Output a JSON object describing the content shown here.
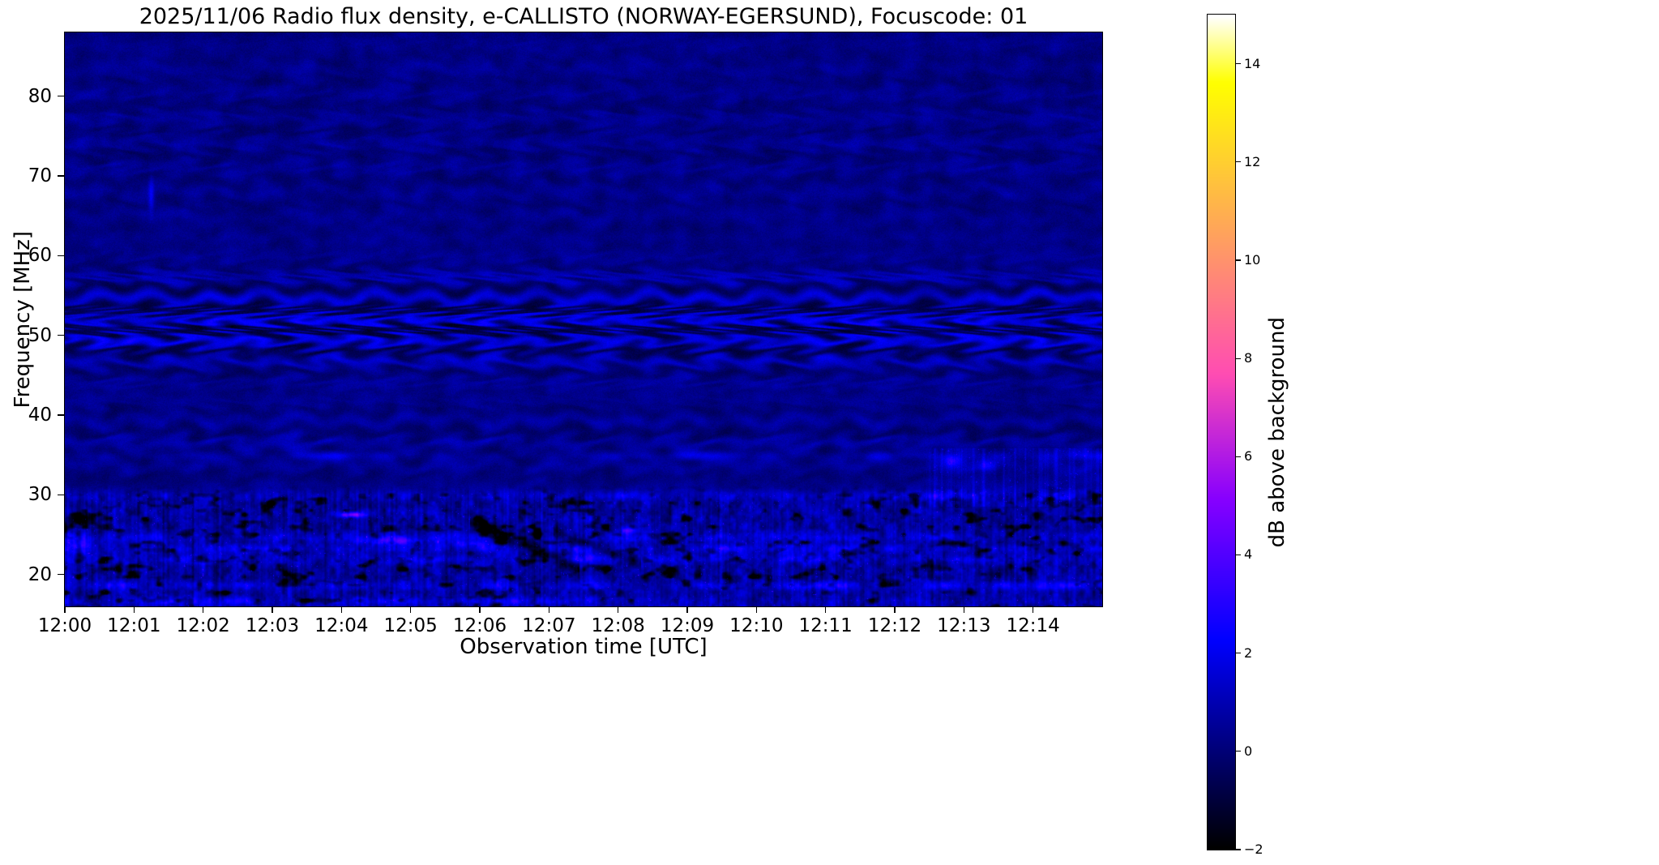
{
  "chart_data": {
    "type": "heatmap",
    "title": "2025/11/06  Radio flux density, e-CALLISTO (NORWAY-EGERSUND), Focuscode: 01",
    "xlabel": "Observation time [UTC]",
    "ylabel": "Frequency [MHz]",
    "colorbar_label": "dB above background",
    "x_tick_labels": [
      "12:00",
      "12:01",
      "12:02",
      "12:03",
      "12:04",
      "12:05",
      "12:06",
      "12:07",
      "12:08",
      "12:09",
      "12:10",
      "12:11",
      "12:12",
      "12:13",
      "12:14"
    ],
    "x_range_minutes": [
      0,
      15
    ],
    "y_tick_values": [
      20,
      30,
      40,
      50,
      60,
      70,
      80
    ],
    "y_range_mhz": [
      16,
      88
    ],
    "colorbar_tick_values": [
      -2,
      0,
      2,
      4,
      6,
      8,
      10,
      12,
      14
    ],
    "color_range_db": [
      -2,
      15
    ],
    "colormap": "gnuplot2",
    "grid": false,
    "legend": "none",
    "render": {
      "seed": 7,
      "background_db": 0.15,
      "ripple_bands": [
        {
          "center_mhz": 51.5,
          "sigma_mhz": 6.5,
          "amp_db": 1.5,
          "period_mhz": 2.7
        },
        {
          "center_mhz": 74.0,
          "sigma_mhz": 13.0,
          "amp_db": 0.32,
          "period_mhz": 3.1
        },
        {
          "center_mhz": 37.0,
          "sigma_mhz": 5.5,
          "amp_db": 0.5,
          "period_mhz": 2.9
        }
      ],
      "wobble": {
        "amp_mhz": 0.55,
        "period_min": 0.8,
        "period2_min": 1.9
      },
      "noisy_band": {
        "top_mhz": 31.5,
        "edge_mhz": 2.0
      },
      "bright_lines_mhz": [
        34.9,
        29.9,
        24.6,
        23.2,
        21.9,
        18.6,
        16.6
      ],
      "hotspots": [
        {
          "t_min": 4.15,
          "f_mhz": 27.5,
          "dur_min": 0.18,
          "bw_mhz": 0.35,
          "amp_db": 5.0
        },
        {
          "t_min": 4.7,
          "f_mhz": 24.2,
          "dur_min": 0.5,
          "bw_mhz": 0.5,
          "amp_db": 2.4
        },
        {
          "t_min": 5.85,
          "f_mhz": 23.8,
          "dur_min": 0.3,
          "bw_mhz": 0.5,
          "amp_db": 2.2
        },
        {
          "t_min": 8.15,
          "f_mhz": 25.5,
          "dur_min": 0.12,
          "bw_mhz": 0.4,
          "amp_db": 3.0
        },
        {
          "t_min": 0.15,
          "f_mhz": 23.5,
          "dur_min": 0.25,
          "bw_mhz": 1.2,
          "amp_db": 2.0
        },
        {
          "t_min": 1.25,
          "f_mhz": 67.5,
          "dur_min": 0.04,
          "bw_mhz": 2.2,
          "amp_db": 1.8
        },
        {
          "t_min": 12.85,
          "f_mhz": 34.3,
          "dur_min": 0.15,
          "bw_mhz": 0.8,
          "amp_db": 2.5
        },
        {
          "t_min": 13.35,
          "f_mhz": 33.6,
          "dur_min": 0.12,
          "bw_mhz": 0.7,
          "amp_db": 2.2
        }
      ],
      "dark_streaks": [
        {
          "t0_min": 5.9,
          "f0_mhz": 26.5,
          "t1_min": 7.4,
          "f1_mhz": 20.8,
          "width_mhz": 0.9,
          "depth_db": 2.2
        },
        {
          "t0_min": 7.1,
          "f0_mhz": 25.2,
          "t1_min": 8.3,
          "f1_mhz": 21.5,
          "width_mhz": 0.7,
          "depth_db": 1.8
        }
      ],
      "right_activity": {
        "t_start_min": 12.35,
        "f_lo_mhz": 28.5,
        "f_hi_mhz": 35.8,
        "amp_db": 1.3
      }
    }
  }
}
